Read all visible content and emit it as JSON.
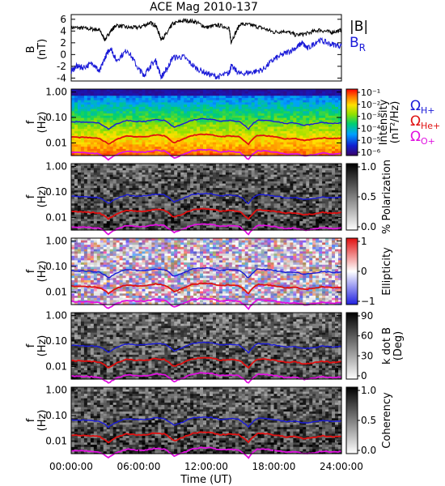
{
  "chart_data": [
    {
      "type": "line",
      "title": "ACE Mag 2010-137",
      "ylabel": "B",
      "yunit": "(nT)",
      "yticks": [
        "6",
        "4",
        "2",
        "0",
        "-2",
        "-4"
      ],
      "ylim": [
        -4.5,
        6.8
      ],
      "xlim": [
        0,
        24
      ],
      "series": [
        {
          "name": "|B|",
          "color": "#000000",
          "x": [
            0,
            1,
            2,
            2.5,
            3,
            3.5,
            4,
            5,
            6,
            7,
            7.5,
            8,
            8.5,
            9,
            10,
            11,
            12,
            13,
            14,
            14.2,
            15,
            16,
            17,
            18,
            19,
            20,
            21,
            22,
            23,
            24
          ],
          "y": [
            4.6,
            4.5,
            4.3,
            4.2,
            2.5,
            4.0,
            5.0,
            4.6,
            4.6,
            5.4,
            5.0,
            2.6,
            3.6,
            5.2,
            5.8,
            5.6,
            4.6,
            5.0,
            4.6,
            2.2,
            5.2,
            5.0,
            4.5,
            3.8,
            4.0,
            3.3,
            3.6,
            4.2,
            3.8,
            4.1
          ]
        },
        {
          "name": "B_R",
          "color": "#1a1ad8",
          "x": [
            0,
            0.5,
            1,
            2,
            2.5,
            3,
            3.5,
            4,
            5,
            6,
            6.5,
            7,
            7.5,
            8,
            8.5,
            9,
            10,
            11,
            12,
            13,
            14,
            14.2,
            15,
            16,
            17,
            18,
            19,
            20,
            20.5,
            21,
            22,
            23,
            24
          ],
          "y": [
            -2.8,
            -2.0,
            -2.2,
            -1.5,
            -3.0,
            -0.5,
            1.2,
            -1.0,
            0.8,
            -2.5,
            -3.5,
            -2.0,
            -1.0,
            -3.8,
            -2.5,
            -0.5,
            -0.4,
            -2.2,
            -3.2,
            -3.8,
            -3.2,
            -2.0,
            -3.3,
            -3.0,
            -2.6,
            -0.8,
            0.2,
            1.2,
            2.0,
            1.0,
            2.5,
            1.8,
            1.5
          ]
        }
      ]
    },
    {
      "type": "heatmap",
      "ylabel": "f",
      "yunit": "(Hz)",
      "yticks": [
        "1.00",
        "0.10",
        "0.01"
      ],
      "colorbar_label": "Intensity",
      "colorbar_unit": "(nT²/Hz)",
      "colorbar_ticks": [
        "10⁻¹",
        "10⁻²",
        "10⁻³",
        "10⁻⁴",
        "10⁻⁵",
        "10⁻⁶"
      ],
      "palette": "rainbow"
    },
    {
      "type": "heatmap",
      "ylabel": "f",
      "yunit": "(Hz)",
      "yticks": [
        "1.00",
        "0.10",
        "0.01"
      ],
      "colorbar_label": "% Polarization",
      "colorbar_ticks": [
        "1.0",
        "0.5",
        "0.0"
      ],
      "palette": "grayscale"
    },
    {
      "type": "heatmap",
      "ylabel": "f",
      "yunit": "(Hz)",
      "yticks": [
        "1.00",
        "0.10",
        "0.01"
      ],
      "colorbar_label": "Ellipticity",
      "colorbar_ticks": [
        "1",
        "0",
        "−1"
      ],
      "palette": "red-white-blue"
    },
    {
      "type": "heatmap",
      "ylabel": "f",
      "yunit": "(Hz)",
      "yticks": [
        "1.00",
        "0.10",
        "0.01"
      ],
      "colorbar_label": "k dot B",
      "colorbar_unit": "(Deg)",
      "colorbar_ticks": [
        "90",
        "60",
        "30",
        "0"
      ],
      "palette": "grayscale"
    },
    {
      "type": "heatmap",
      "ylabel": "f",
      "yunit": "(Hz)",
      "yticks": [
        "1.00",
        "0.10",
        "0.01"
      ],
      "colorbar_label": "Coherency",
      "colorbar_ticks": [
        "1.0",
        "0.5",
        "0.0"
      ],
      "palette": "grayscale"
    }
  ],
  "gyro_lines": {
    "labels": [
      {
        "symbol": "Ω",
        "sub": "H+",
        "color": "#1a1ad8"
      },
      {
        "symbol": "Ω",
        "sub": "He+",
        "color": "#e01010"
      },
      {
        "symbol": "Ω",
        "sub": "O+",
        "color": "#e010e0"
      }
    ],
    "H_plus_hz": [
      0.068,
      0.066,
      0.064,
      0.06,
      0.035,
      0.058,
      0.076,
      0.07,
      0.07,
      0.082,
      0.076,
      0.04,
      0.055,
      0.079,
      0.088,
      0.085,
      0.07,
      0.076,
      0.07,
      0.034,
      0.079,
      0.076,
      0.068,
      0.058,
      0.061,
      0.05,
      0.055,
      0.064,
      0.058,
      0.062
    ],
    "ratios": {
      "He_plus": 0.25,
      "O_plus": 0.0625
    }
  },
  "x_axis": {
    "xlabel": "Time (UT)",
    "ticks": [
      "00:00:00",
      "06:00:00",
      "12:00:00",
      "18:00:00",
      "24:00:00"
    ]
  }
}
